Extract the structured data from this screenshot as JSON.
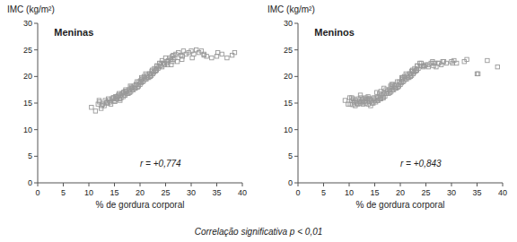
{
  "chart_data": [
    {
      "type": "scatter",
      "title": "Meninas",
      "x_label": "% de gordura corporal",
      "y_label": "IMC (kg/m²)",
      "annotations": [
        "r = +0,774"
      ],
      "marker": "square",
      "color": "#999999",
      "grid": false,
      "xlim": [
        0,
        40
      ],
      "ylim": [
        0,
        30
      ],
      "xticks": [
        0,
        5,
        10,
        15,
        20,
        25,
        30,
        35,
        40
      ],
      "yticks": [
        0,
        5,
        10,
        15,
        20,
        25,
        30
      ],
      "x": [
        10.5,
        11.3,
        11.8,
        12.1,
        12.4,
        12.0,
        12.7,
        13.2,
        13.5,
        13.0,
        13.8,
        14.1,
        14.5,
        14.3,
        14.8,
        15.0,
        15.2,
        15.5,
        15.1,
        15.8,
        16.0,
        15.7,
        16.3,
        16.5,
        16.1,
        16.8,
        17.0,
        16.7,
        17.3,
        17.5,
        17.1,
        17.8,
        18.0,
        17.7,
        18.3,
        18.5,
        18.2,
        18.8,
        19.0,
        18.7,
        19.3,
        19.5,
        19.1,
        19.8,
        20.0,
        19.7,
        20.3,
        20.5,
        20.2,
        20.8,
        21.0,
        20.7,
        21.3,
        21.5,
        21.2,
        21.8,
        22.0,
        21.7,
        22.3,
        22.5,
        22.2,
        22.8,
        23.0,
        22.7,
        23.3,
        23.5,
        23.2,
        23.8,
        24.0,
        23.7,
        24.3,
        24.5,
        24.8,
        25.0,
        25.3,
        25.5,
        25.8,
        26.0,
        26.3,
        26.5,
        26.8,
        27.0,
        27.5,
        28.0,
        28.5,
        29.0,
        29.5,
        30.0,
        30.5,
        31.0,
        31.5,
        32.0,
        32.5,
        33.0,
        34.0,
        35.0,
        36.0,
        37.0,
        38.0,
        38.5,
        14.0,
        15.3,
        16.2,
        17.1,
        18.3,
        19.2,
        20.1,
        21.3,
        22.2,
        23.1,
        24.3,
        25.2,
        26.1,
        27.3,
        28.2,
        13.5,
        14.8,
        15.9,
        17.2,
        18.1,
        19.4,
        20.3,
        21.1,
        22.4,
        23.3,
        24.1,
        25.4,
        26.3,
        12.5,
        13.7,
        15.4,
        16.8,
        18.5,
        20.4,
        21.9,
        23.2,
        24.7,
        26.5,
        28.3,
        30.2,
        32.5,
        35.2
      ],
      "values": [
        14.2,
        13.5,
        14.8,
        15.2,
        14.0,
        15.5,
        14.8,
        15.5,
        15.0,
        14.5,
        15.8,
        15.2,
        15.8,
        14.8,
        16.0,
        15.5,
        16.2,
        15.8,
        15.3,
        16.5,
        15.8,
        16.3,
        16.0,
        16.8,
        15.5,
        17.0,
        16.5,
        16.2,
        17.2,
        16.8,
        16.5,
        17.5,
        17.0,
        16.8,
        18.0,
        17.5,
        17.2,
        18.2,
        17.8,
        17.5,
        18.5,
        18.0,
        17.8,
        19.0,
        18.5,
        18.2,
        19.5,
        19.0,
        18.8,
        20.0,
        19.5,
        19.2,
        20.2,
        19.8,
        19.5,
        20.5,
        20.0,
        19.8,
        21.0,
        20.5,
        20.2,
        21.5,
        21.0,
        20.8,
        22.0,
        21.5,
        21.2,
        22.5,
        22.0,
        21.8,
        23.0,
        22.5,
        22.2,
        23.5,
        22.8,
        23.0,
        23.5,
        23.2,
        23.8,
        24.0,
        23.5,
        24.2,
        24.5,
        24.0,
        24.8,
        24.2,
        24.5,
        24.8,
        24.2,
        25.0,
        24.5,
        24.8,
        24.2,
        23.8,
        23.5,
        23.8,
        24.2,
        23.5,
        24.0,
        24.5,
        15.5,
        15.8,
        16.5,
        17.2,
        17.8,
        18.5,
        19.2,
        19.8,
        20.5,
        21.2,
        21.8,
        22.5,
        22.2,
        22.8,
        23.2,
        15.2,
        16.0,
        16.8,
        17.5,
        18.2,
        19.0,
        19.8,
        20.5,
        21.2,
        22.0,
        22.5,
        22.2,
        22.8,
        14.5,
        15.0,
        16.2,
        17.0,
        17.8,
        19.5,
        20.5,
        21.5,
        22.5,
        23.2,
        23.8,
        23.5,
        24.0,
        24.5
      ]
    },
    {
      "type": "scatter",
      "title": "Meninos",
      "x_label": "% de gordura corporal",
      "y_label": "IMC (kg/m²)",
      "annotations": [
        "r = +0,843"
      ],
      "marker": "square",
      "color": "#999999",
      "grid": false,
      "xlim": [
        0,
        40
      ],
      "ylim": [
        0,
        30
      ],
      "xticks": [
        0,
        5,
        10,
        15,
        20,
        25,
        30,
        35,
        40
      ],
      "yticks": [
        0,
        5,
        10,
        15,
        20,
        25,
        30
      ],
      "x": [
        9.2,
        9.8,
        10.1,
        10.5,
        10.2,
        10.8,
        11.0,
        10.7,
        11.3,
        11.5,
        11.2,
        11.8,
        12.0,
        11.7,
        12.3,
        12.5,
        12.2,
        12.8,
        13.0,
        12.7,
        13.3,
        13.5,
        13.2,
        13.8,
        14.0,
        13.7,
        14.3,
        14.5,
        14.2,
        14.8,
        15.0,
        14.7,
        15.3,
        15.5,
        15.2,
        15.8,
        16.0,
        15.7,
        16.3,
        16.5,
        16.2,
        16.8,
        17.0,
        16.7,
        17.3,
        17.5,
        17.2,
        17.8,
        18.0,
        17.7,
        18.3,
        18.5,
        18.2,
        18.8,
        19.0,
        18.7,
        19.3,
        19.5,
        19.2,
        19.8,
        20.0,
        19.7,
        20.3,
        20.5,
        20.2,
        20.8,
        21.0,
        20.7,
        21.3,
        21.5,
        21.2,
        21.8,
        22.0,
        21.7,
        22.3,
        22.5,
        22.2,
        22.8,
        23.0,
        22.7,
        23.3,
        23.5,
        23.2,
        23.8,
        24.0,
        24.5,
        25.0,
        25.5,
        26.0,
        26.5,
        27.0,
        27.5,
        28.0,
        29.0,
        30.0,
        31.0,
        33.0,
        35.0,
        37.0,
        39.0,
        13.5,
        14.8,
        15.9,
        17.2,
        18.1,
        19.4,
        20.3,
        21.1,
        22.4,
        23.3,
        24.1,
        25.4,
        26.3,
        27.5,
        12.5,
        13.7,
        15.4,
        16.8,
        18.5,
        20.4,
        21.9,
        23.2,
        24.7,
        26.5,
        28.3,
        30.2,
        32.5,
        35.2,
        10.5,
        12.2,
        14.0,
        16.2,
        18.3,
        20.5,
        22.2,
        24.5,
        26.8,
        28.5,
        30.5
      ],
      "values": [
        15.5,
        14.8,
        16.0,
        15.5,
        14.8,
        15.8,
        15.2,
        14.7,
        15.5,
        15.0,
        14.5,
        15.8,
        15.3,
        14.8,
        16.0,
        15.5,
        15.0,
        15.8,
        15.3,
        14.8,
        16.0,
        15.5,
        15.0,
        15.8,
        15.3,
        14.8,
        15.5,
        15.0,
        14.5,
        15.8,
        15.5,
        15.0,
        16.0,
        15.5,
        15.2,
        16.2,
        15.8,
        15.5,
        16.5,
        16.0,
        15.8,
        16.8,
        16.3,
        16.0,
        16.8,
        17.2,
        16.8,
        17.5,
        17.0,
        16.8,
        18.0,
        17.5,
        17.2,
        18.2,
        17.8,
        17.5,
        18.5,
        18.0,
        17.8,
        19.0,
        18.5,
        18.2,
        19.5,
        19.0,
        18.8,
        20.0,
        19.5,
        19.2,
        20.2,
        19.8,
        19.5,
        20.5,
        20.0,
        19.8,
        21.0,
        20.5,
        20.2,
        21.5,
        21.0,
        20.8,
        22.0,
        21.5,
        21.2,
        22.5,
        22.0,
        21.8,
        22.2,
        21.8,
        22.5,
        22.0,
        21.8,
        22.5,
        22.2,
        22.5,
        22.8,
        22.5,
        23.2,
        20.5,
        23.0,
        21.8,
        15.8,
        16.0,
        16.8,
        17.5,
        18.2,
        19.0,
        19.8,
        20.5,
        21.2,
        22.0,
        22.5,
        22.2,
        22.8,
        22.5,
        15.2,
        16.2,
        17.0,
        17.8,
        18.5,
        19.5,
        20.5,
        21.2,
        22.0,
        22.5,
        22.8,
        22.5,
        22.8,
        20.5,
        16.0,
        16.5,
        15.8,
        17.2,
        18.5,
        19.8,
        21.0,
        22.0,
        22.5,
        22.8,
        23.0
      ]
    }
  ],
  "footer": "Correlação significativa p < 0,01"
}
